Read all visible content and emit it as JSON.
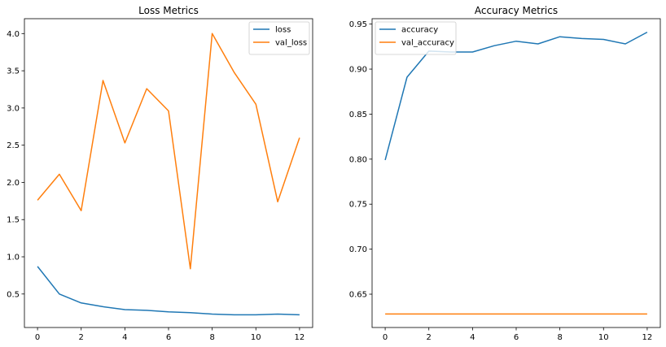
{
  "colors": {
    "series_1": "#1f77b4",
    "series_2": "#ff7f0e",
    "axis": "#000000",
    "legend_border": "#cccccc"
  },
  "chart_data": [
    {
      "type": "line",
      "title": "Loss Metrics",
      "xlabel": "",
      "ylabel": "",
      "xlim": [
        -0.6,
        12.6
      ],
      "ylim": [
        0.05,
        4.2
      ],
      "x_ticks": [
        0,
        2,
        4,
        6,
        8,
        10,
        12
      ],
      "y_ticks": [
        0.5,
        1.0,
        1.5,
        2.0,
        2.5,
        3.0,
        3.5,
        4.0
      ],
      "x_tick_labels": [
        "0",
        "2",
        "4",
        "6",
        "8",
        "10",
        "12"
      ],
      "y_tick_labels": [
        "0.5",
        "1.0",
        "1.5",
        "2.0",
        "2.5",
        "3.0",
        "3.5",
        "4.0"
      ],
      "grid": false,
      "legend_position": "top-right",
      "x": [
        0,
        1,
        2,
        3,
        4,
        5,
        6,
        7,
        8,
        9,
        10,
        11,
        12
      ],
      "series": [
        {
          "name": "loss",
          "color": "#1f77b4",
          "values": [
            0.87,
            0.5,
            0.38,
            0.33,
            0.29,
            0.28,
            0.26,
            0.25,
            0.23,
            0.22,
            0.22,
            0.23,
            0.22
          ]
        },
        {
          "name": "val_loss",
          "color": "#ff7f0e",
          "values": [
            1.76,
            2.11,
            1.62,
            3.37,
            2.53,
            3.26,
            2.96,
            0.84,
            4.0,
            3.48,
            3.05,
            1.74,
            2.6
          ]
        }
      ]
    },
    {
      "type": "line",
      "title": "Accuracy Metrics",
      "xlabel": "",
      "ylabel": "",
      "xlim": [
        -0.6,
        12.6
      ],
      "ylim": [
        0.613,
        0.956
      ],
      "x_ticks": [
        0,
        2,
        4,
        6,
        8,
        10,
        12
      ],
      "y_ticks": [
        0.65,
        0.7,
        0.75,
        0.8,
        0.85,
        0.9,
        0.95
      ],
      "x_tick_labels": [
        "0",
        "2",
        "4",
        "6",
        "8",
        "10",
        "12"
      ],
      "y_tick_labels": [
        "0.65",
        "0.70",
        "0.75",
        "0.80",
        "0.85",
        "0.90",
        "0.95"
      ],
      "grid": false,
      "legend_position": "top-left",
      "x": [
        0,
        1,
        2,
        3,
        4,
        5,
        6,
        7,
        8,
        9,
        10,
        11,
        12
      ],
      "series": [
        {
          "name": "accuracy",
          "color": "#1f77b4",
          "values": [
            0.799,
            0.891,
            0.92,
            0.919,
            0.919,
            0.926,
            0.931,
            0.928,
            0.936,
            0.934,
            0.933,
            0.928,
            0.941
          ]
        },
        {
          "name": "val_accuracy",
          "color": "#ff7f0e",
          "values": [
            0.628,
            0.628,
            0.628,
            0.628,
            0.628,
            0.628,
            0.628,
            0.628,
            0.628,
            0.628,
            0.628,
            0.628,
            0.628
          ]
        }
      ]
    }
  ]
}
